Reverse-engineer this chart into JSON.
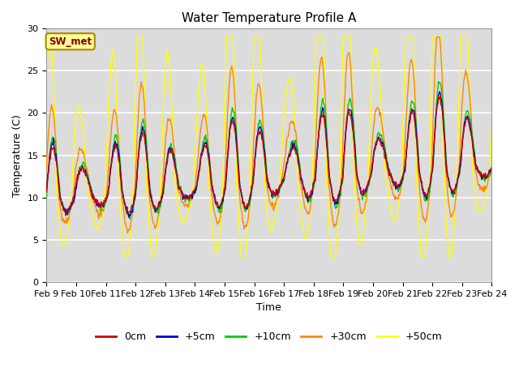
{
  "title": "Water Temperature Profile A",
  "xlabel": "Time",
  "ylabel": "Temperature (C)",
  "ylim": [
    0,
    30
  ],
  "yticks": [
    0,
    5,
    10,
    15,
    20,
    25,
    30
  ],
  "x_labels": [
    "Feb 9",
    "Feb 10",
    "Feb 11",
    "Feb 12",
    "Feb 13",
    "Feb 14",
    "Feb 15",
    "Feb 16",
    "Feb 17",
    "Feb 18",
    "Feb 19",
    "Feb 20",
    "Feb 21",
    "Feb 22",
    "Feb 23",
    "Feb 24"
  ],
  "legend_labels": [
    "0cm",
    "+5cm",
    "+10cm",
    "+30cm",
    "+50cm"
  ],
  "legend_colors": [
    "#cc0000",
    "#0000cc",
    "#00cc00",
    "#ff8800",
    "#ffff00"
  ],
  "background_color": "#dcdcdc",
  "annotation_text": "SW_met",
  "annotation_box_facecolor": "#ffff99",
  "annotation_text_color": "#880000",
  "annotation_box_edgecolor": "#aa8800"
}
